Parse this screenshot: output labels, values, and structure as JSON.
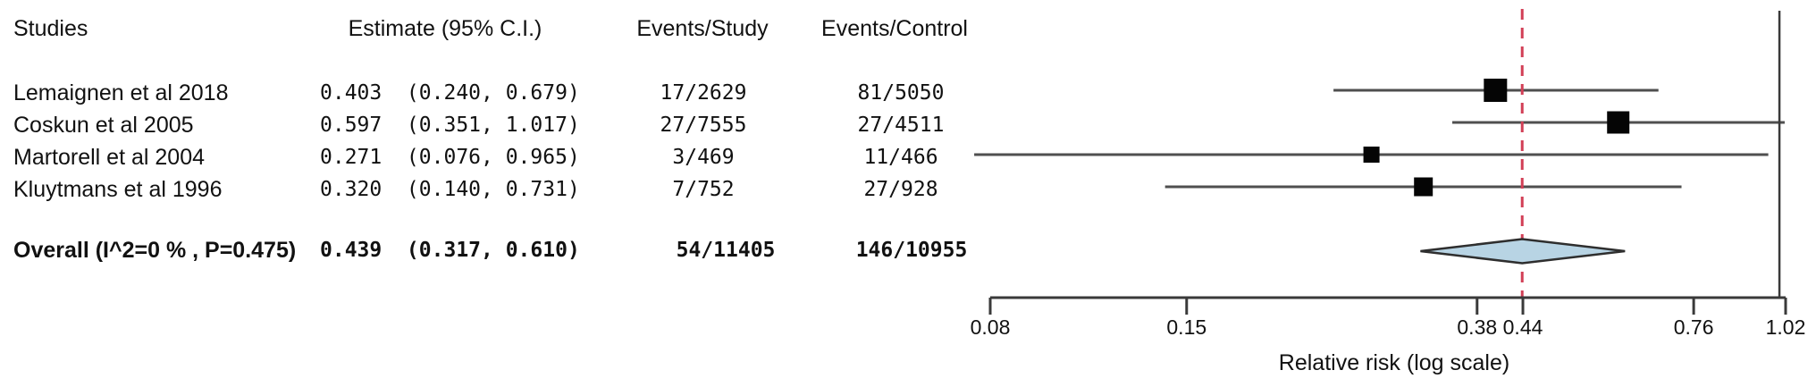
{
  "table": {
    "columns": {
      "studies": "Studies",
      "estimate": "Estimate (95% C.I.)",
      "events_study": "Events/Study",
      "events_control": "Events/Control"
    }
  },
  "chart_data": {
    "type": "forest",
    "xlabel": "Relative risk (log scale)",
    "x_scale": "log",
    "xlim": [
      0.08,
      1.02
    ],
    "x_tick_labels": [
      "0.08",
      "0.15",
      "0.38",
      "0.44",
      "0.76",
      "1.02"
    ],
    "x_tick_values": [
      0.08,
      0.15,
      0.38,
      0.44,
      0.76,
      1.02
    ],
    "reference_line": 1.0,
    "summary_dashed_line": 0.439,
    "series": [
      {
        "name": "Lemaignen et al 2018",
        "est": 0.403,
        "lo": 0.24,
        "hi": 0.679,
        "events_study": "17/2629",
        "events_control": "81/5050",
        "box_weight": 26
      },
      {
        "name": "Coskun et al 2005",
        "est": 0.597,
        "lo": 0.351,
        "hi": 1.017,
        "events_study": "27/7555",
        "events_control": "27/4511",
        "box_weight": 25
      },
      {
        "name": "Martorell et al 2004",
        "est": 0.271,
        "lo": 0.076,
        "hi": 0.965,
        "events_study": "3/469",
        "events_control": "11/466",
        "box_weight": 18
      },
      {
        "name": "Kluytmans et al 1996",
        "est": 0.32,
        "lo": 0.14,
        "hi": 0.731,
        "events_study": "7/752",
        "events_control": "27/928",
        "box_weight": 21
      }
    ],
    "summary": {
      "name": "Overall (I^2=0 % , P=0.475)",
      "est": 0.439,
      "lo": 0.317,
      "hi": 0.61,
      "events_study": "54/11405",
      "events_control": "146/10955"
    },
    "colors": {
      "ci_line": "#4f4f4f",
      "box": "#050505",
      "diamond_fill": "#b8d4e4",
      "diamond_stroke": "#2e2e2e",
      "dashed_line": "#d23f56",
      "axis": "#3a3a3a",
      "text": "#111111"
    }
  }
}
